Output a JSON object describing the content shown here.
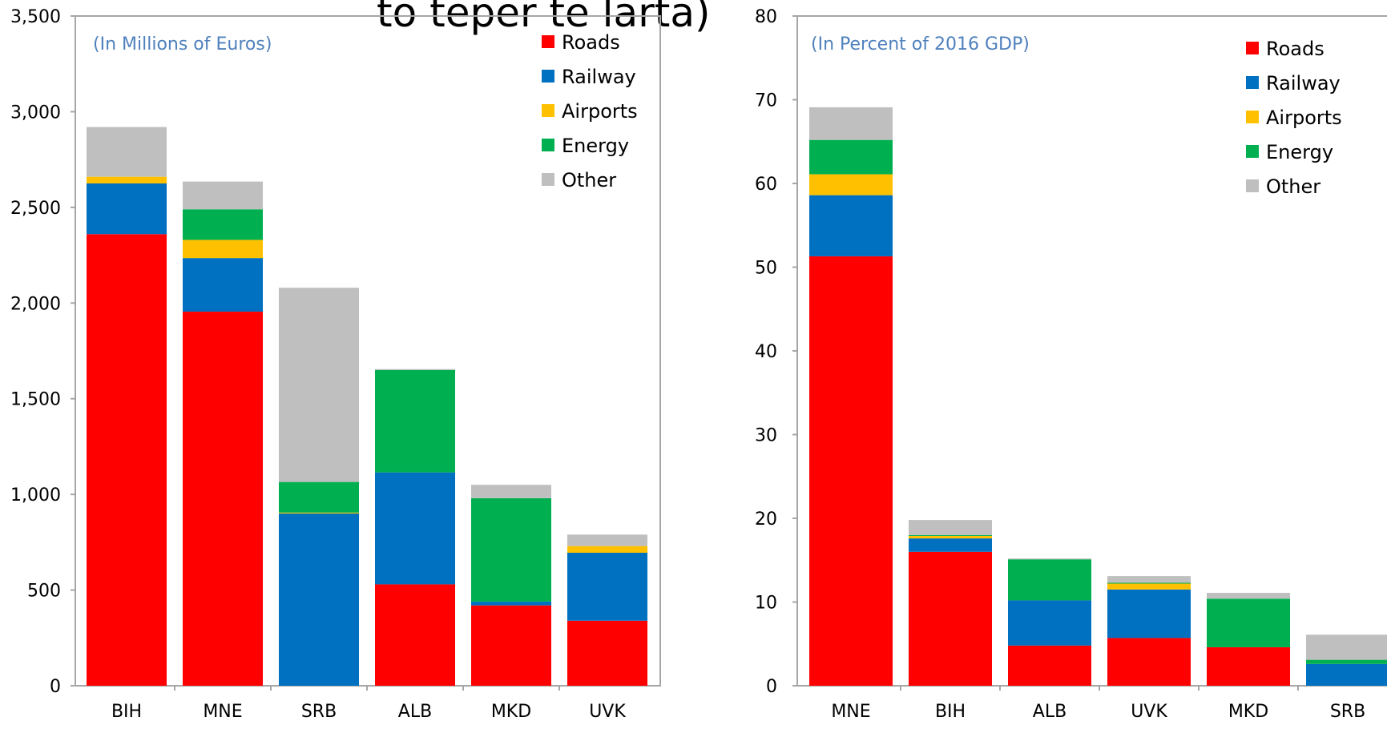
{
  "header_fragment": "to tepër të larta)",
  "chart_data": [
    {
      "type": "bar",
      "stacked": true,
      "subtitle": "(In Millions of Euros)",
      "categories": [
        "BIH",
        "MNE",
        "SRB",
        "ALB",
        "MKD",
        "UVK"
      ],
      "ylim": [
        0,
        3500
      ],
      "yticks": [
        "0",
        "500",
        "1,000",
        "1,500",
        "2,000",
        "2,500",
        "3,000",
        "3,500"
      ],
      "ytick_values": [
        0,
        500,
        1000,
        1500,
        2000,
        2500,
        3000,
        3500
      ],
      "legend_position": "top-right",
      "series": [
        {
          "name": "Roads",
          "color": "#FF0000",
          "values": [
            2360,
            1955,
            0,
            530,
            420,
            340
          ]
        },
        {
          "name": "Railway",
          "color": "#0070C0",
          "values": [
            265,
            280,
            900,
            585,
            20,
            355
          ]
        },
        {
          "name": "Airports",
          "color": "#FFC000",
          "values": [
            35,
            95,
            5,
            0,
            0,
            35
          ]
        },
        {
          "name": "Energy",
          "color": "#00B050",
          "values": [
            0,
            160,
            160,
            535,
            540,
            0
          ]
        },
        {
          "name": "Other",
          "color": "#BFBFBF",
          "values": [
            260,
            145,
            1015,
            5,
            70,
            60
          ]
        }
      ]
    },
    {
      "type": "bar",
      "stacked": true,
      "subtitle": "(In Percent of 2016 GDP)",
      "categories": [
        "MNE",
        "BIH",
        "ALB",
        "UVK",
        "MKD",
        "SRB"
      ],
      "ylim": [
        0,
        80
      ],
      "yticks": [
        "0",
        "10",
        "20",
        "30",
        "40",
        "50",
        "60",
        "70",
        "80"
      ],
      "ytick_values": [
        0,
        10,
        20,
        30,
        40,
        50,
        60,
        70,
        80
      ],
      "legend_position": "top-right",
      "series": [
        {
          "name": "Roads",
          "color": "#FF0000",
          "values": [
            51.3,
            16.0,
            4.8,
            5.7,
            4.6,
            0
          ]
        },
        {
          "name": "Railway",
          "color": "#0070C0",
          "values": [
            7.3,
            1.6,
            5.4,
            5.8,
            0,
            2.6
          ]
        },
        {
          "name": "Airports",
          "color": "#FFC000",
          "values": [
            2.5,
            0.3,
            0,
            0.7,
            0,
            0
          ]
        },
        {
          "name": "Energy",
          "color": "#00B050",
          "values": [
            4.1,
            0.1,
            4.9,
            0.1,
            5.8,
            0.5
          ]
        },
        {
          "name": "Other",
          "color": "#BFBFBF",
          "values": [
            3.9,
            1.8,
            0.1,
            0.8,
            0.7,
            3.0
          ]
        }
      ]
    }
  ]
}
